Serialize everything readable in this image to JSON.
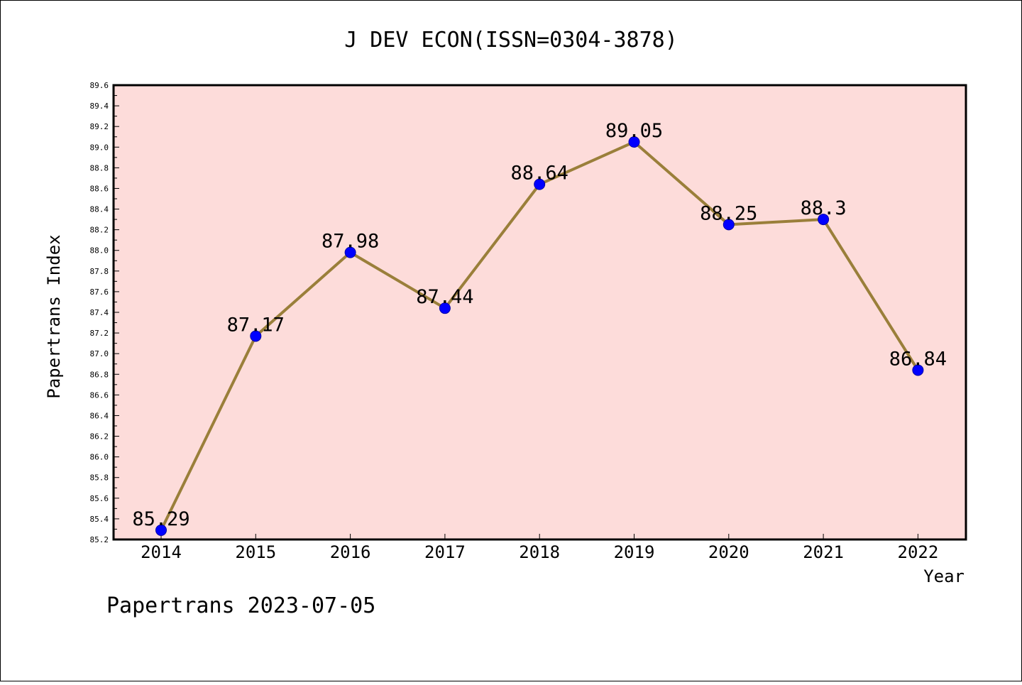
{
  "chart_data": {
    "type": "line",
    "title": "J DEV ECON(ISSN=0304-3878)",
    "xlabel": "Year",
    "ylabel": "Papertrans Index",
    "categories": [
      "2014",
      "2015",
      "2016",
      "2017",
      "2018",
      "2019",
      "2020",
      "2021",
      "2022"
    ],
    "values": [
      85.29,
      87.17,
      87.98,
      87.44,
      88.64,
      89.05,
      88.25,
      88.3,
      86.84
    ],
    "data_labels": [
      "85.29",
      "87.17",
      "87.98",
      "87.44",
      "88.64",
      "89.05",
      "88.25",
      "88.3",
      "86.84"
    ],
    "ylim": [
      85.2,
      89.6
    ],
    "yticks": [
      "85.2",
      "85.4",
      "85.6",
      "85.8",
      "86.0",
      "86.2",
      "86.4",
      "86.6",
      "86.8",
      "87.0",
      "87.2",
      "87.4",
      "87.6",
      "87.8",
      "88.0",
      "88.2",
      "88.4",
      "88.6",
      "88.8",
      "89.0",
      "89.2",
      "89.4",
      "89.6"
    ],
    "grid": false,
    "legend": "none",
    "colors": {
      "plot_background": "#fddcda",
      "line": "#9a7f3a",
      "marker": "#0000ff"
    }
  },
  "footer": {
    "text": "Papertrans 2023-07-05"
  }
}
